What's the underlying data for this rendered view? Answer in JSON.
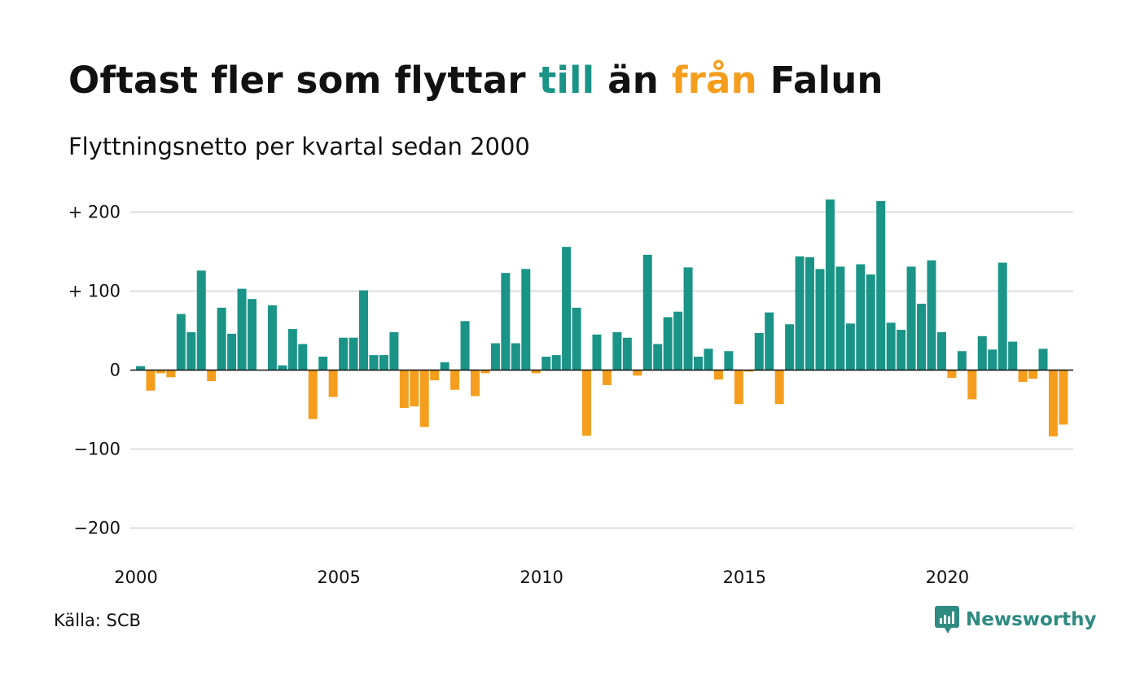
{
  "header": {
    "title_part1": "Oftast fler som flyttar ",
    "title_till": "till",
    "title_mid": " än ",
    "title_fran": "från",
    "title_end": " Falun",
    "subtitle": "Flyttningsnetto per kvartal sedan 2000"
  },
  "colors": {
    "positive": "#1a9487",
    "negative": "#f59e1e",
    "grid": "#dddddd",
    "axis": "#111111",
    "text": "#111111",
    "logo": "#2e8b82"
  },
  "footer": {
    "source": "Källa: SCB",
    "brand": "Newsworthy",
    "brand_icon": "newsworthy-logo-icon"
  },
  "chart_data": {
    "type": "bar",
    "title": "Oftast fler som flyttar till än från Falun",
    "subtitle": "Flyttningsnetto per kvartal sedan 2000",
    "x_unit": "quarter",
    "start_year": 2000,
    "xticks": [
      "2000",
      "2005",
      "2010",
      "2015",
      "2020"
    ],
    "yticks": [
      200,
      100,
      0,
      -100,
      -200
    ],
    "ytick_labels": [
      "+ 200",
      "+ 100",
      "0",
      "−100",
      "−200"
    ],
    "ylim": [
      -210,
      215
    ],
    "grid": true,
    "values": [
      5,
      -26,
      -4,
      -9,
      71,
      48,
      126,
      -14,
      79,
      46,
      103,
      90,
      0,
      82,
      6,
      52,
      33,
      -62,
      17,
      -34,
      41,
      41,
      101,
      19,
      19,
      48,
      -48,
      -46,
      -72,
      -13,
      10,
      -25,
      62,
      -33,
      -4,
      34,
      123,
      34,
      128,
      -4,
      17,
      19,
      156,
      79,
      -83,
      45,
      -19,
      48,
      41,
      -7,
      146,
      33,
      67,
      74,
      130,
      17,
      27,
      -12,
      24,
      -43,
      -2,
      47,
      73,
      -43,
      58,
      144,
      143,
      128,
      216,
      131,
      59,
      134,
      121,
      214,
      60,
      51,
      131,
      84,
      139,
      48,
      -10,
      24,
      -37,
      43,
      26,
      136,
      36,
      -15,
      -11,
      27,
      -84,
      -69
    ]
  }
}
